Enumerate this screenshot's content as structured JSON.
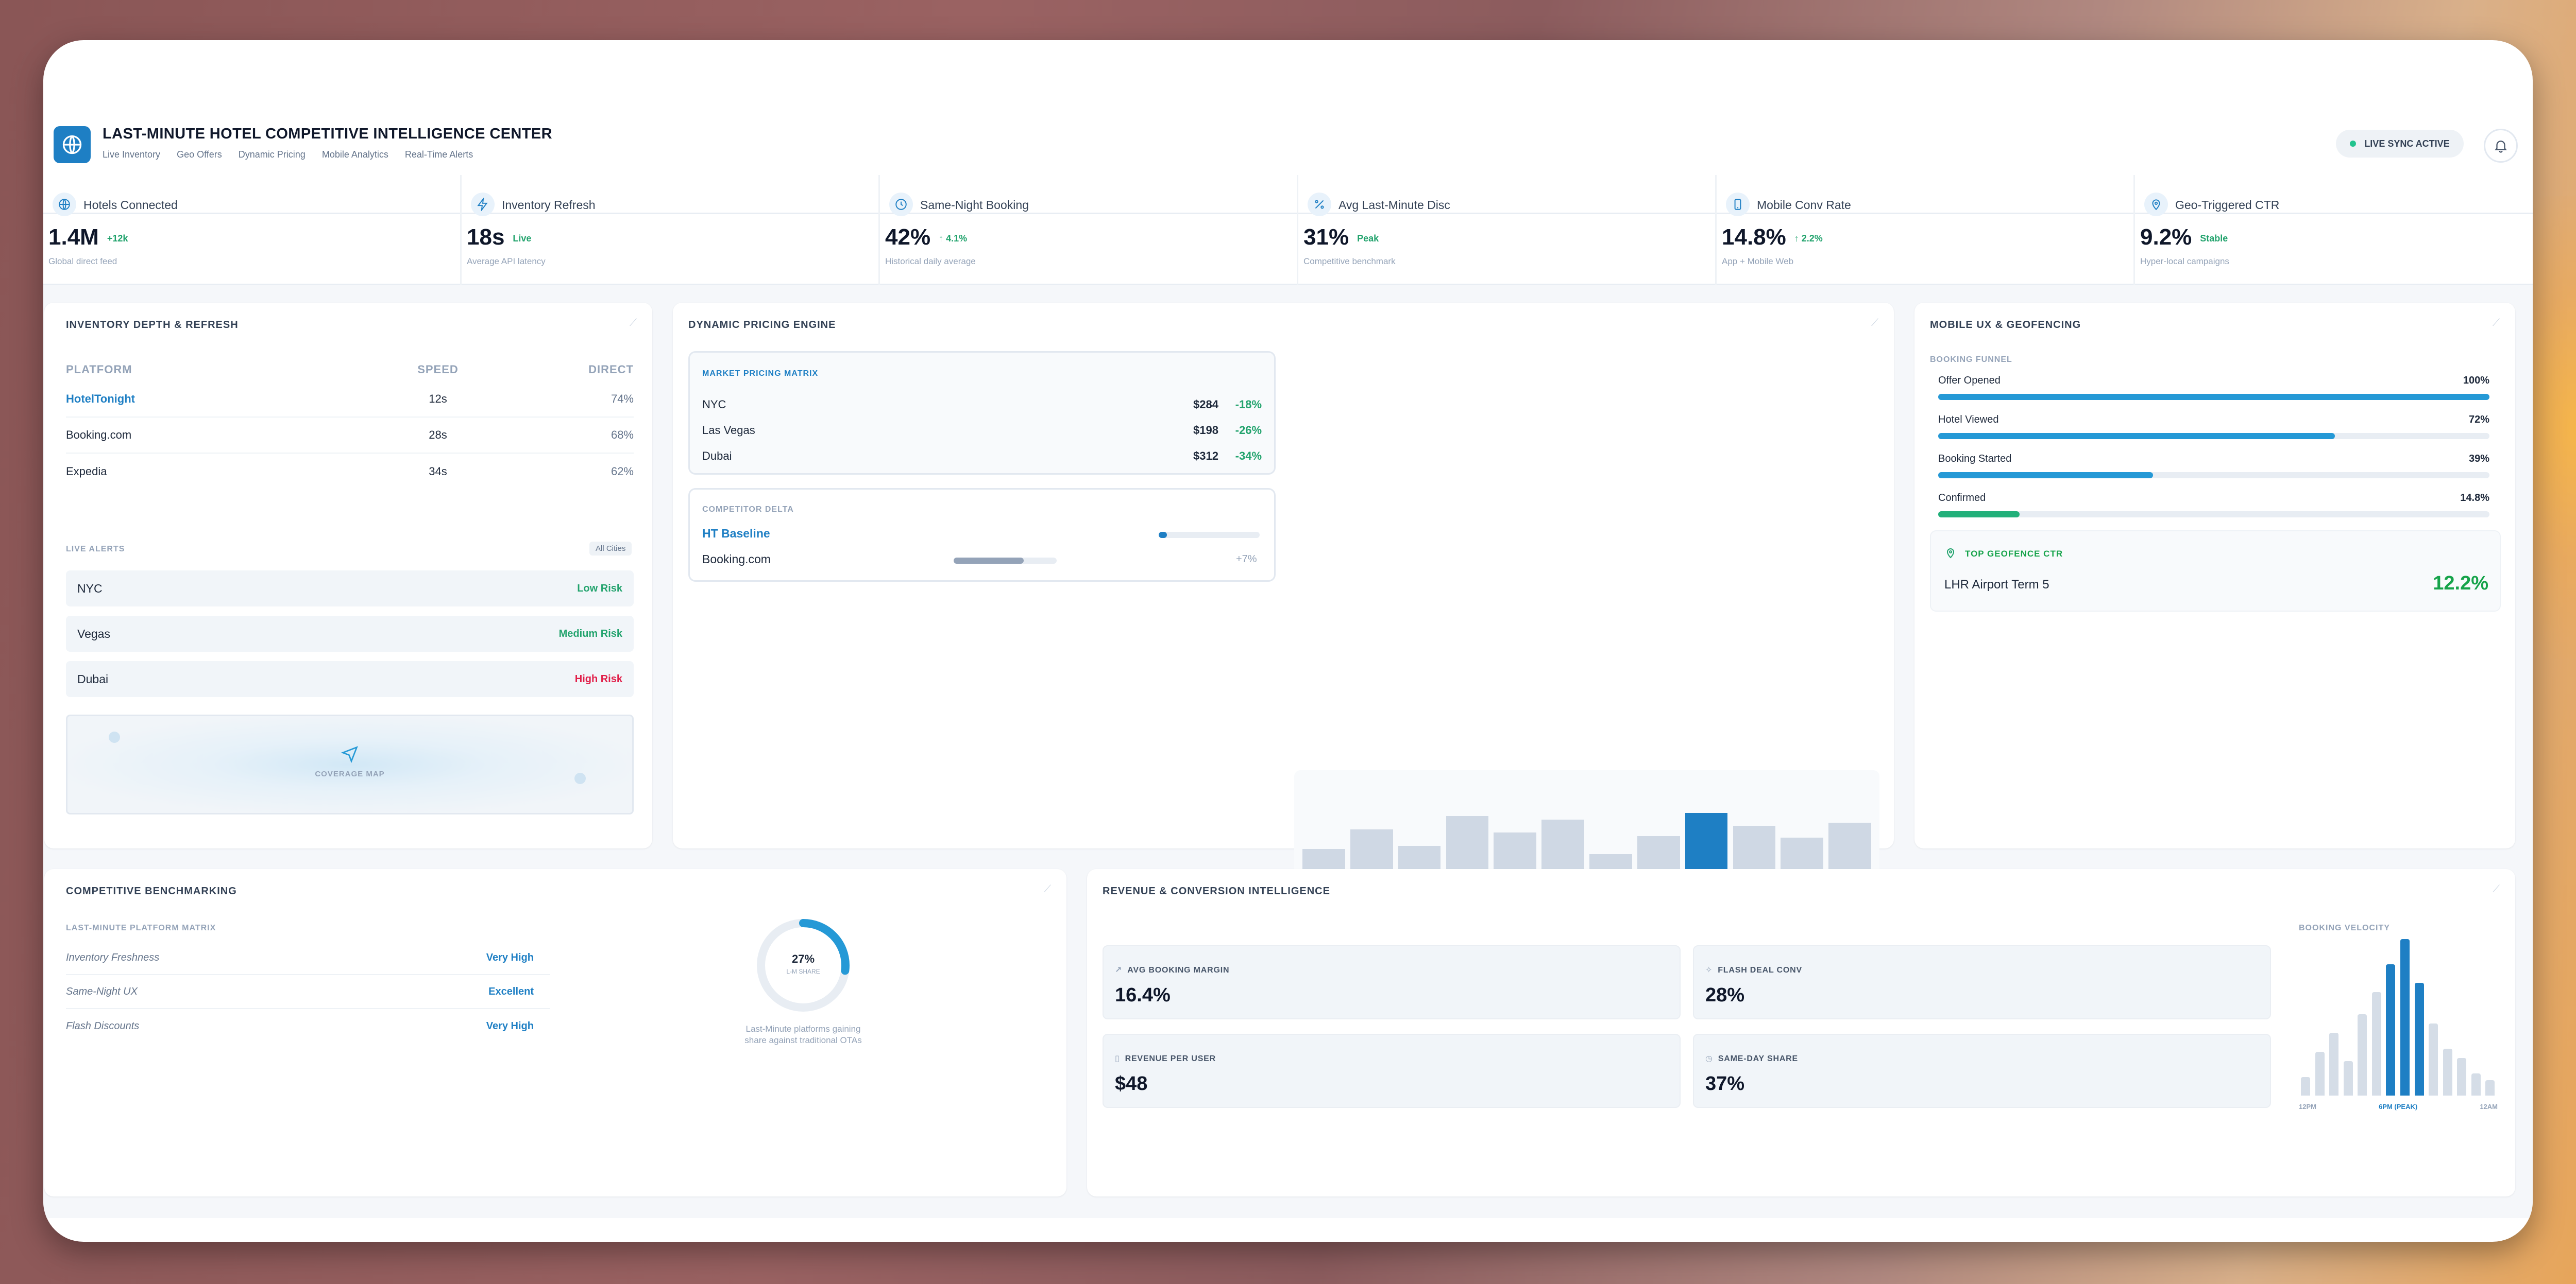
{
  "app": {
    "title": "LAST-MINUTE HOTEL COMPETITIVE INTELLIGENCE CENTER",
    "nav": [
      "Live Inventory",
      "Geo Offers",
      "Dynamic Pricing",
      "Mobile Analytics",
      "Real-Time Alerts"
    ],
    "sync_label": "LIVE SYNC ACTIVE",
    "accent": "#1e7fc4",
    "positive": "#22a36d",
    "negative": "#e11d48"
  },
  "kpis": [
    {
      "icon": "globe-icon",
      "label": "Hotels Connected",
      "value": "1.4M",
      "trend": "+12k",
      "sub": "Global direct feed"
    },
    {
      "icon": "bolt-icon",
      "label": "Inventory Refresh",
      "value": "18s",
      "trend": "Live",
      "sub": "Average API latency"
    },
    {
      "icon": "clock-icon",
      "label": "Same-Night Booking",
      "value": "42%",
      "trend": "↑ 4.1%",
      "sub": "Historical daily average"
    },
    {
      "icon": "percent-icon",
      "label": "Avg Last-Minute Disc",
      "value": "31%",
      "trend": "Peak",
      "sub": "Competitive benchmark"
    },
    {
      "icon": "phone-icon",
      "label": "Mobile Conv Rate",
      "value": "14.8%",
      "trend": "↑ 2.2%",
      "sub": "App + Mobile Web"
    },
    {
      "icon": "pin-icon",
      "label": "Geo-Triggered CTR",
      "value": "9.2%",
      "trend": "Stable",
      "sub": "Hyper-local campaigns"
    }
  ],
  "inventory": {
    "title": "INVENTORY DEPTH & REFRESH",
    "headers": [
      "PLATFORM",
      "SPEED",
      "DIRECT"
    ],
    "rows": [
      {
        "platform": "HotelTonight",
        "speed": "12s",
        "direct": "74%"
      },
      {
        "platform": "Booking.com",
        "speed": "28s",
        "direct": "68%"
      },
      {
        "platform": "Expedia",
        "speed": "34s",
        "direct": "62%"
      }
    ],
    "alerts_title": "LIVE ALERTS",
    "alerts_filter": "All Cities",
    "alerts": [
      {
        "city": "NYC",
        "risk": "Low Risk"
      },
      {
        "city": "Vegas",
        "risk": "Medium Risk"
      },
      {
        "city": "Dubai",
        "risk": "High Risk"
      }
    ],
    "map_label": "COVERAGE MAP"
  },
  "pricing": {
    "title": "DYNAMIC PRICING ENGINE",
    "matrix_title": "MARKET PRICING MATRIX",
    "matrix": [
      {
        "city": "NYC",
        "price": "$284",
        "delta": "-18%"
      },
      {
        "city": "Las Vegas",
        "price": "$198",
        "delta": "-26%"
      },
      {
        "city": "Dubai",
        "price": "$312",
        "delta": "-34%"
      }
    ],
    "delta_title": "COMPETITOR DELTA",
    "delta": [
      {
        "name": "HT Baseline",
        "fill": 0.08,
        "value": ""
      },
      {
        "name": "Booking.com",
        "fill": 0.68,
        "value": "+7%"
      }
    ],
    "bars": [
      0.28,
      0.52,
      0.32,
      0.68,
      0.48,
      0.64,
      0.22,
      0.44,
      0.72,
      0.56,
      0.42,
      0.6
    ],
    "highlight_index": 8
  },
  "mobile": {
    "title": "MOBILE UX & GEOFENCING",
    "funnel_title": "BOOKING FUNNEL",
    "funnel": [
      {
        "label": "Offer Opened",
        "value": "100%",
        "pct": 1.0
      },
      {
        "label": "Hotel Viewed",
        "value": "72%",
        "pct": 0.72
      },
      {
        "label": "Booking Started",
        "value": "39%",
        "pct": 0.39
      },
      {
        "label": "Confirmed",
        "value": "14.8%",
        "pct": 0.148
      }
    ],
    "geofence_title": "TOP GEOFENCE CTR",
    "geofence_place": "LHR Airport Term 5",
    "geofence_value": "12.2%"
  },
  "benchmark": {
    "title": "COMPETITIVE BENCHMARKING",
    "matrix_title": "LAST-MINUTE PLATFORM MATRIX",
    "rows": [
      {
        "label": "Inventory Freshness",
        "value": "Very High"
      },
      {
        "label": "Same-Night UX",
        "value": "Excellent"
      },
      {
        "label": "Flash Discounts",
        "value": "Very High"
      }
    ],
    "donut_value": "27%",
    "donut_pct": 0.27,
    "donut_label": "L-M SHARE",
    "donut_caption_1": "Last-Minute platforms gaining",
    "donut_caption_2": "share against traditional OTAs"
  },
  "revenue": {
    "title": "REVENUE & CONVERSION INTELLIGENCE",
    "metrics": [
      {
        "icon": "trend-icon",
        "label": "AVG BOOKING MARGIN",
        "value": "16.4%"
      },
      {
        "icon": "flash-icon",
        "label": "FLASH DEAL CONV",
        "value": "28%"
      },
      {
        "icon": "phone-icon",
        "label": "REVENUE PER USER",
        "value": "$48"
      },
      {
        "icon": "clock-icon",
        "label": "SAME-DAY SHARE",
        "value": "37%"
      }
    ],
    "velocity_title": "BOOKING VELOCITY",
    "velocity": [
      0.12,
      0.28,
      0.4,
      0.22,
      0.52,
      0.66,
      0.84,
      1.0,
      0.72,
      0.46,
      0.3,
      0.24,
      0.14,
      0.1
    ],
    "velocity_highlight": [
      6,
      7,
      8
    ],
    "velocity_axis": [
      "12PM",
      "6PM (PEAK)",
      "12AM"
    ]
  }
}
